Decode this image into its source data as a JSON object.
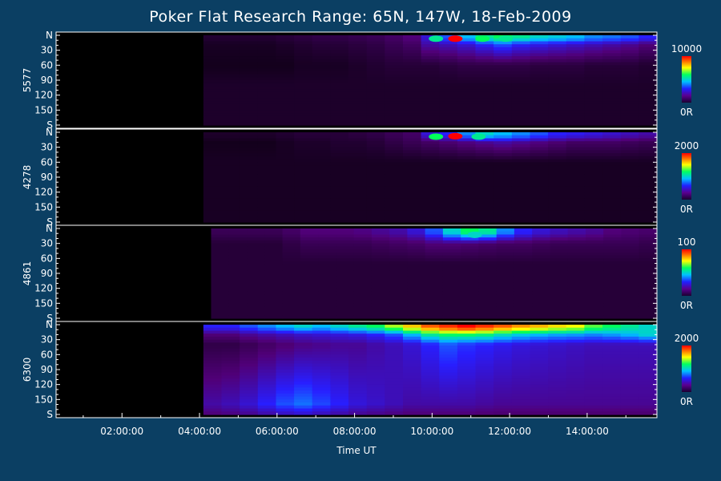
{
  "chart_data": {
    "type": "heatmap",
    "title": "Poker Flat Research Range: 65N, 147W, 18-Feb-2009",
    "xlabel": "Time UT",
    "x_ticks": [
      "02:00:00",
      "04:00:00",
      "06:00:00",
      "08:00:00",
      "10:00:00",
      "12:00:00",
      "14:00:00"
    ],
    "x_tick_hours": [
      2,
      4,
      6,
      8,
      10,
      12,
      14
    ],
    "xlim_hours": [
      0.3,
      15.8
    ],
    "y_ticks": [
      "N",
      "30",
      "60",
      "90",
      "120",
      "150",
      "S"
    ],
    "y_tick_values": [
      0,
      30,
      60,
      90,
      120,
      150,
      180
    ],
    "ylim": [
      0,
      180
    ],
    "panels": [
      {
        "ylabel": "5577",
        "colorbar_max": "10000",
        "colorbar_min": "0R",
        "data_start_hour": 4.1,
        "baseline": 0.08,
        "rows": [
          {
            "angle": 6,
            "values": [
              0.05,
              0.05,
              0.05,
              0.05,
              0.06,
              0.07,
              0.08,
              0.08,
              0.09,
              0.1,
              0.12,
              0.15,
              0.25,
              0.35,
              0.45,
              0.55,
              0.6,
              0.55,
              0.5,
              0.48,
              0.45,
              0.4,
              0.38,
              0.35,
              0.3
            ]
          },
          {
            "angle": 18,
            "values": [
              0.03,
              0.03,
              0.03,
              0.03,
              0.04,
              0.05,
              0.06,
              0.06,
              0.07,
              0.08,
              0.1,
              0.12,
              0.2,
              0.22,
              0.25,
              0.3,
              0.35,
              0.3,
              0.28,
              0.26,
              0.24,
              0.22,
              0.2,
              0.18,
              0.15
            ]
          },
          {
            "angle": 60,
            "values": [
              0.02,
              0.02,
              0.02,
              0.02,
              0.02,
              0.03,
              0.03,
              0.03,
              0.04,
              0.05,
              0.06,
              0.06,
              0.06,
              0.07,
              0.08,
              0.08,
              0.08,
              0.08,
              0.07,
              0.07,
              0.07,
              0.06,
              0.06,
              0.06,
              0.05
            ]
          }
        ],
        "hotspots": [
          {
            "hour": 10.1,
            "angle": 2,
            "intensity": 0.55
          },
          {
            "hour": 10.6,
            "angle": 2,
            "intensity": 1.0
          },
          {
            "hour": 11.3,
            "angle": 2,
            "intensity": 0.6
          },
          {
            "hour": 11.9,
            "angle": 2,
            "intensity": 0.55
          }
        ]
      },
      {
        "ylabel": "4278",
        "colorbar_max": "2000",
        "colorbar_min": "0R",
        "data_start_hour": 4.1,
        "baseline": 0.06,
        "rows": [
          {
            "angle": 6,
            "values": [
              0.04,
              0.04,
              0.04,
              0.04,
              0.05,
              0.06,
              0.06,
              0.06,
              0.07,
              0.08,
              0.1,
              0.12,
              0.25,
              0.3,
              0.4,
              0.5,
              0.45,
              0.4,
              0.35,
              0.3,
              0.28,
              0.26,
              0.24,
              0.22,
              0.2
            ]
          },
          {
            "angle": 20,
            "values": [
              0.02,
              0.02,
              0.02,
              0.02,
              0.03,
              0.04,
              0.04,
              0.05,
              0.05,
              0.06,
              0.08,
              0.1,
              0.12,
              0.14,
              0.16,
              0.18,
              0.2,
              0.18,
              0.16,
              0.14,
              0.12,
              0.12,
              0.12,
              0.11,
              0.1
            ]
          }
        ],
        "hotspots": [
          {
            "hour": 10.1,
            "angle": 4,
            "intensity": 0.6
          },
          {
            "hour": 10.6,
            "angle": 3,
            "intensity": 1.0
          },
          {
            "hour": 11.2,
            "angle": 4,
            "intensity": 0.55
          }
        ]
      },
      {
        "ylabel": "4861",
        "colorbar_max": "100",
        "colorbar_min": "0R",
        "data_start_hour": 4.3,
        "baseline": 0.12,
        "rows": [
          {
            "angle": 8,
            "values": [
              0.1,
              0.1,
              0.1,
              0.1,
              0.12,
              0.15,
              0.15,
              0.15,
              0.16,
              0.18,
              0.2,
              0.25,
              0.35,
              0.5,
              0.6,
              0.55,
              0.4,
              0.3,
              0.25,
              0.22,
              0.2,
              0.18,
              0.15,
              0.14,
              0.13
            ]
          },
          {
            "angle": 30,
            "values": [
              0.06,
              0.06,
              0.06,
              0.06,
              0.08,
              0.1,
              0.1,
              0.1,
              0.1,
              0.11,
              0.12,
              0.13,
              0.15,
              0.15,
              0.14,
              0.13,
              0.12,
              0.12,
              0.11,
              0.1,
              0.1,
              0.1,
              0.1,
              0.1,
              0.09
            ]
          }
        ],
        "hotspots": [
          {
            "hour": 11.1,
            "angle": 8,
            "intensity": 0.5
          }
        ]
      },
      {
        "ylabel": "6300",
        "colorbar_max": "2000",
        "colorbar_min": "0R",
        "data_start_hour": 4.1,
        "baseline": 0.18,
        "rows": [
          {
            "angle": 5,
            "values": [
              0.3,
              0.3,
              0.35,
              0.4,
              0.45,
              0.5,
              0.45,
              0.5,
              0.55,
              0.6,
              0.7,
              0.8,
              0.9,
              0.95,
              1.0,
              0.95,
              0.9,
              0.85,
              0.82,
              0.78,
              0.75,
              0.65,
              0.6,
              0.55,
              0.5
            ]
          },
          {
            "angle": 20,
            "values": [
              0.15,
              0.15,
              0.18,
              0.2,
              0.22,
              0.24,
              0.25,
              0.26,
              0.27,
              0.3,
              0.35,
              0.45,
              0.55,
              0.6,
              0.6,
              0.58,
              0.52,
              0.48,
              0.45,
              0.43,
              0.42,
              0.4,
              0.42,
              0.45,
              0.5
            ]
          },
          {
            "angle": 40,
            "values": [
              0.08,
              0.08,
              0.1,
              0.12,
              0.14,
              0.16,
              0.17,
              0.18,
              0.18,
              0.2,
              0.22,
              0.25,
              0.3,
              0.35,
              0.32,
              0.3,
              0.28,
              0.26,
              0.25,
              0.24,
              0.23,
              0.22,
              0.22,
              0.22,
              0.22
            ]
          },
          {
            "angle": 160,
            "values": [
              0.2,
              0.22,
              0.25,
              0.3,
              0.35,
              0.38,
              0.34,
              0.3,
              0.26,
              0.24,
              0.22,
              0.2,
              0.2,
              0.2,
              0.2,
              0.19,
              0.18,
              0.18,
              0.18,
              0.18,
              0.18,
              0.18,
              0.18,
              0.18,
              0.18
            ]
          }
        ],
        "hotspots": []
      }
    ]
  }
}
